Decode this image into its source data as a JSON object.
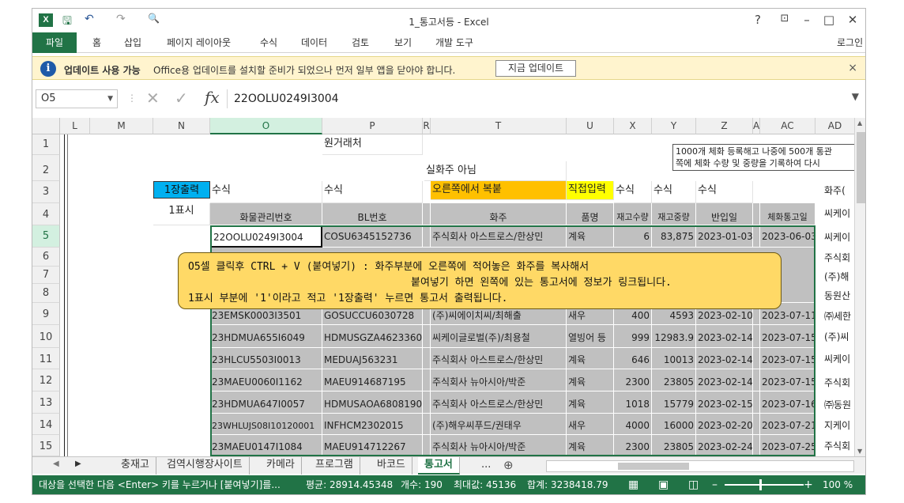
{
  "window": {
    "title": "1_통고서등 - Excel",
    "help": "?",
    "ribbon_display": "⊡",
    "minimize": "–",
    "maximize": "□",
    "close": "✕"
  },
  "quick_access": {
    "save": "🖫",
    "undo": "↶",
    "redo": "↷",
    "preview": "🔍"
  },
  "ribbon": {
    "tabs": [
      "파일",
      "홈",
      "삽입",
      "페이지 레이아웃",
      "수식",
      "데이터",
      "검토",
      "보기",
      "개발 도구"
    ],
    "login": "로그인"
  },
  "message_bar": {
    "title": "업데이트 사용 가능",
    "text": "Office용 업데이트를 설치할 준비가 되었으나 먼저 일부 앱을 닫아야 합니다.",
    "button": "지금 업데이트",
    "close": "×"
  },
  "formula_bar": {
    "name_box": "O5",
    "value": "22OOLU0249I3004",
    "fx": "fx"
  },
  "columns": [
    "L",
    "M",
    "N",
    "O",
    "P",
    "R",
    "T",
    "U",
    "X",
    "Y",
    "Z",
    "A",
    "AC",
    "AD"
  ],
  "rows": [
    "1",
    "2",
    "3",
    "4",
    "5",
    "6",
    "7",
    "8",
    "9",
    "10",
    "11",
    "12",
    "13",
    "14",
    "15"
  ],
  "sheet": {
    "r1_origin": "원거래처",
    "r2_owner_note": "실화주 아님",
    "r3_print_btn": "1장출력",
    "r3_formula_o": "수식",
    "r3_formula_p": "수식",
    "r3_copy_hint": "오른쪽에서 복붙",
    "r3_direct_input": "직접입력",
    "r3_formula_x": "수식",
    "r3_formula_y": "수식",
    "r3_formula_z": "수식",
    "r3_right": "화주(",
    "r4_label": "1표시",
    "headers": {
      "cargo_no": "화물관리번호",
      "bl_no": "BL번호",
      "owner": "화주",
      "item": "품명",
      "stock_qty": "재고수량",
      "stock_weight": "재고중량",
      "in_date": "반입일",
      "notice_date": "체화통고일"
    },
    "r5": {
      "cargo_no": "22OOLU0249I3004",
      "bl_no": "COSU6345152736",
      "owner": "주식회사 아스트로스/한상민",
      "item": "계육",
      "qty": "6",
      "weight": "83,875",
      "in_date": "2023-01-03",
      "notice": "2023-06-03"
    },
    "right_col": [
      "씨케이",
      "씨케이",
      "주식회",
      "(주)해",
      "동원산",
      "㈜세한",
      "(주)씨",
      "씨케이",
      "주식회",
      "㈜동원",
      "지케이",
      "주식회"
    ],
    "data_rows": [
      {
        "row": "9",
        "cargo_no": "23EMSK0003I3501",
        "bl_no": "GOSUCCU6030728",
        "owner": "(주)씨에이치씨/최해출",
        "item": "새우",
        "qty": "400",
        "weight": "4593",
        "in_date": "2023-02-10",
        "notice": "2023-07-11"
      },
      {
        "row": "10",
        "cargo_no": "23HDMUA655I6049",
        "bl_no": "HDMUSGZA46233600",
        "owner": "씨케이글로벌(주)/최용철",
        "item": "열빙어 등",
        "qty": "999",
        "weight": "12983.9",
        "in_date": "2023-02-14",
        "notice": "2023-07-15"
      },
      {
        "row": "11",
        "cargo_no": "23HLCU5503I0013",
        "bl_no": "MEDUAJ563231",
        "owner": "주식회사 아스트로스/한상민",
        "item": "계육",
        "qty": "646",
        "weight": "10013",
        "in_date": "2023-02-14",
        "notice": "2023-07-15"
      },
      {
        "row": "12",
        "cargo_no": "23MAEU0060I1162",
        "bl_no": "MAEU914687195",
        "owner": "주식회사 뉴아시아/박준",
        "item": "계육",
        "qty": "2300",
        "weight": "23805",
        "in_date": "2023-02-14",
        "notice": "2023-07-15"
      },
      {
        "row": "13",
        "cargo_no": "23HDMUA647I0057",
        "bl_no": "HDMUSAOA68081900",
        "owner": "주식회사 아스트로스/한상민",
        "item": "계육",
        "qty": "1018",
        "weight": "15779",
        "in_date": "2023-02-15",
        "notice": "2023-07-16"
      },
      {
        "row": "14",
        "cargo_no": "23WHLUJS08I10120001",
        "bl_no": "INFHCM2302015",
        "owner": "(주)해우씨푸드/권태우",
        "item": "새우",
        "qty": "4000",
        "weight": "16000",
        "in_date": "2023-02-20",
        "notice": "2023-07-21"
      },
      {
        "row": "15",
        "cargo_no": "23MAEU0147I1084",
        "bl_no": "MAEU914712267",
        "owner": "주식회사 뉴아시아/박준",
        "item": "계육",
        "qty": "2300",
        "weight": "23805",
        "in_date": "2023-02-24",
        "notice": "2023-07-25"
      }
    ]
  },
  "note": {
    "line1": "O5셀 클릭후 CTRL + V (붙여넣기) : 화주부분에 오른쪽에 적어놓은 화주를 복사해서",
    "line2": "붙여넣기 하면 왼쪽에 있는 통고서에 정보가 링크됩니다.",
    "line3": "1표시 부분에 '1'이라고 적고 '1장출력' 누르면 통고서 출력됩니다."
  },
  "tooltip": {
    "line1": "1000개 체화 등록해고 나중에 500개 통관",
    "line2": "쪽에 체화 수량 및 중량을 기록하여 다시"
  },
  "sheet_tabs": [
    "충재고",
    "검역시행장사이트",
    "카메라",
    "프로그램",
    "바코드",
    "통고서",
    "..."
  ],
  "active_sheet": "통고서",
  "add_sheet": "⊕",
  "status": {
    "message": "대상을 선택한 다음 <Enter> 키를 누르거나 [붙여넣기]를...",
    "average": "평균: 28914.45348",
    "count": "개수: 190",
    "max": "최대값: 45136",
    "sum": "합계: 3238418.79",
    "zoom": "100 %"
  },
  "colors": {
    "excel_green": "#217346",
    "cell_gray": "#c0c0c0",
    "print_btn": "#00b0f0",
    "copy_hint": "#ffc000",
    "direct_input": "#ffff00",
    "note": "#ffd966"
  }
}
